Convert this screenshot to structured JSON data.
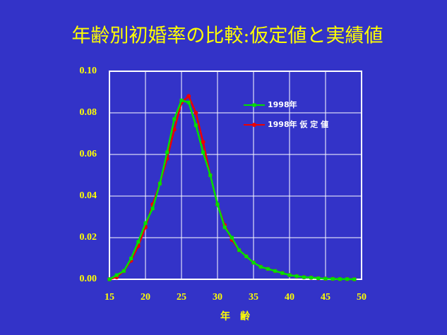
{
  "chart_data": {
    "type": "line",
    "title": "年齢別初婚率の比較:仮定値と実績値",
    "xlabel": "年　齢",
    "x": [
      15,
      16,
      17,
      18,
      19,
      20,
      21,
      22,
      23,
      24,
      25,
      26,
      27,
      28,
      29,
      30,
      31,
      32,
      33,
      34,
      35,
      36,
      37,
      38,
      39,
      40,
      41,
      42,
      43,
      44,
      45,
      46,
      47,
      48,
      49
    ],
    "series": [
      {
        "name": "1998年",
        "color": "#00e000",
        "marker": "square",
        "values": [
          0.0,
          0.002,
          0.004,
          0.01,
          0.018,
          0.027,
          0.034,
          0.046,
          0.061,
          0.077,
          0.086,
          0.085,
          0.074,
          0.061,
          0.05,
          0.036,
          0.025,
          0.02,
          0.014,
          0.011,
          0.008,
          0.006,
          0.005,
          0.004,
          0.003,
          0.002,
          0.0015,
          0.001,
          0.0008,
          0.0005,
          0.0003,
          0.0002,
          0.0001,
          0.0001,
          0.0
        ]
      },
      {
        "name": "1998年 仮 定 値",
        "color": "#ee0000",
        "marker": "circle",
        "values": [
          0.0,
          0.001,
          0.004,
          0.009,
          0.016,
          0.025,
          0.036,
          0.046,
          0.058,
          0.072,
          0.085,
          0.088,
          0.08,
          0.066,
          0.05,
          0.036,
          0.026,
          0.019,
          0.014,
          0.011,
          0.008,
          0.006,
          0.005,
          0.004,
          0.003,
          0.002,
          0.0015,
          0.001,
          0.0008,
          0.0005,
          0.0003,
          0.0002,
          0.0001,
          0.0001,
          0.0
        ]
      }
    ],
    "xlim": [
      15,
      50
    ],
    "xticks": [
      15,
      20,
      25,
      30,
      35,
      40,
      45,
      50
    ],
    "ylim": [
      0,
      0.1
    ],
    "yticks": [
      {
        "value": 0,
        "label": "0.00"
      },
      {
        "value": 0.02,
        "label": "0.02"
      },
      {
        "value": 0.04,
        "label": "0.04"
      },
      {
        "value": 0.06,
        "label": "0.06"
      },
      {
        "value": 0.08,
        "label": "0.08"
      },
      {
        "value": 0.1,
        "label": "0.10"
      }
    ],
    "grid": true,
    "legend": "upper right"
  }
}
